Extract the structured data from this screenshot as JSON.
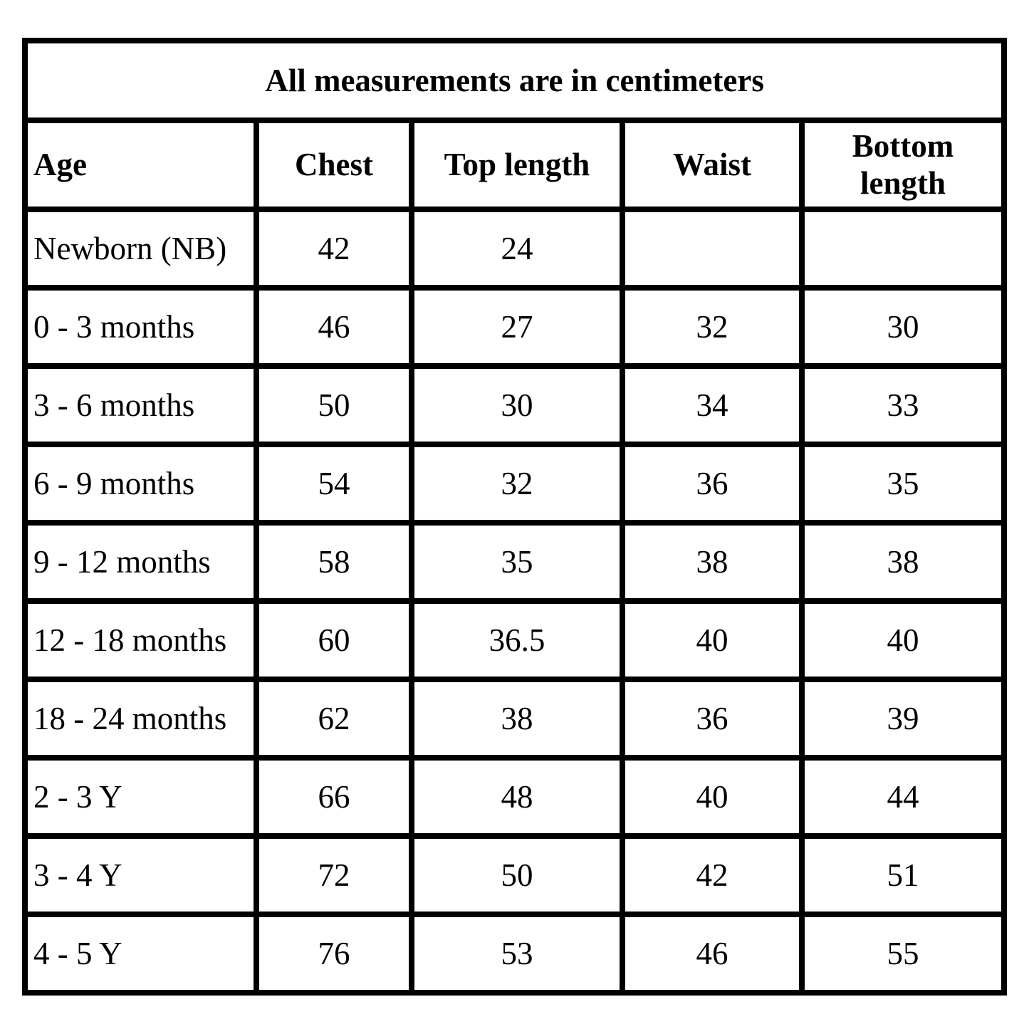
{
  "chart_data": {
    "type": "table",
    "title": "All measurements are in centimeters",
    "columns": [
      "Age",
      "Chest",
      "Top length",
      "Waist",
      "Bottom length"
    ],
    "rows": [
      [
        "Newborn (NB)",
        "42",
        "24",
        "",
        ""
      ],
      [
        "0 - 3 months",
        "46",
        "27",
        "32",
        "30"
      ],
      [
        "3 - 6 months",
        "50",
        "30",
        "34",
        "33"
      ],
      [
        "6 - 9 months",
        "54",
        "32",
        "36",
        "35"
      ],
      [
        "9 - 12 months",
        "58",
        "35",
        "38",
        "38"
      ],
      [
        "12 - 18 months",
        "60",
        "36.5",
        "40",
        "40"
      ],
      [
        "18 - 24 months",
        "62",
        "38",
        "36",
        "39"
      ],
      [
        "2 - 3 Y",
        "66",
        "48",
        "40",
        "44"
      ],
      [
        "3 - 4 Y",
        "72",
        "50",
        "42",
        "51"
      ],
      [
        "4 - 5 Y",
        "76",
        "53",
        "46",
        "55"
      ]
    ],
    "layout": {
      "border_color": "#000000",
      "background_color": "#ffffff",
      "text_color": "#000000",
      "grid": "on",
      "units": "centimeters"
    }
  }
}
